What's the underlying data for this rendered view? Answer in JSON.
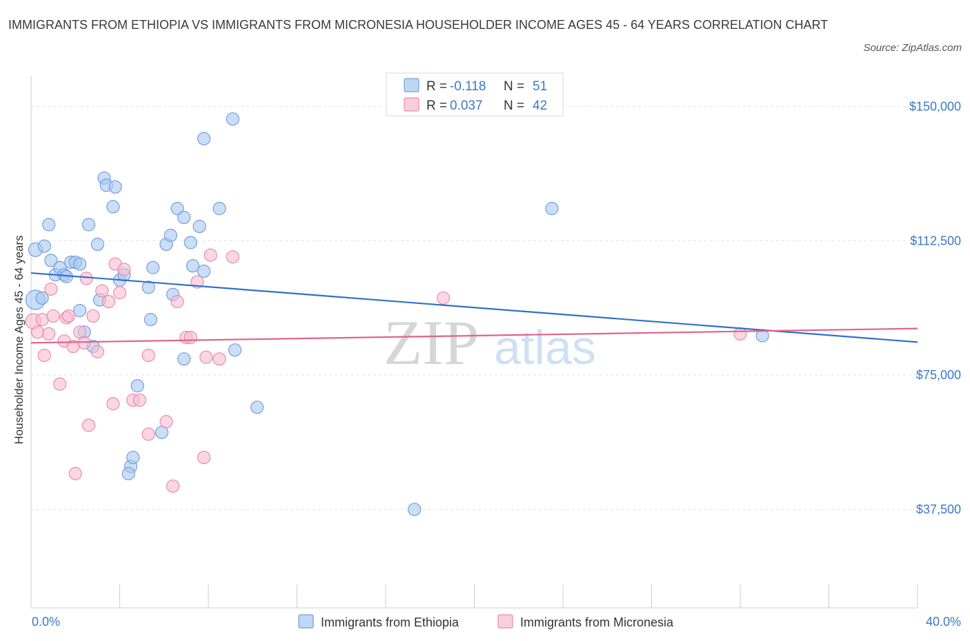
{
  "title": "IMMIGRANTS FROM ETHIOPIA VS IMMIGRANTS FROM MICRONESIA HOUSEHOLDER INCOME AGES 45 - 64 YEARS CORRELATION CHART",
  "source": "Source: ZipAtlas.com",
  "watermark": {
    "zip": "ZIP",
    "atlas": "atlas"
  },
  "colors": {
    "ethiopia_fill": "#a9c8f0",
    "ethiopia_stroke": "#6f9fe0",
    "ethiopia_line": "#2f6fd0",
    "micronesia_fill": "#f6bdd0",
    "micronesia_stroke": "#e98aac",
    "micronesia_line": "#e0628e",
    "axis_text": "#3b78c9"
  },
  "legend": {
    "rows": [
      {
        "r_label": "R = ",
        "r_value": "-0.118",
        "n_label": "N = ",
        "n_value": "51"
      },
      {
        "r_label": "R = ",
        "r_value": "0.037",
        "n_label": "N = ",
        "n_value": "42"
      }
    ]
  },
  "chart_data": {
    "type": "scatter",
    "title": "IMMIGRANTS FROM ETHIOPIA VS IMMIGRANTS FROM MICRONESIA HOUSEHOLDER INCOME AGES 45 - 64 YEARS CORRELATION CHART",
    "xlabel": "",
    "ylabel": "Householder Income Ages 45 - 64 years",
    "xlim": [
      0,
      40
    ],
    "ylim": [
      10000,
      157000
    ],
    "x_tick_labels": [
      "0.0%",
      "40.0%"
    ],
    "y_ticks": [
      37500,
      75000,
      112500,
      150000
    ],
    "y_tick_labels": [
      "$37,500",
      "$75,000",
      "$112,500",
      "$150,000"
    ],
    "grid": true,
    "legend_position": "top-center",
    "series": [
      {
        "name": "Immigrants from Ethiopia",
        "trend": {
          "x": [
            0,
            40
          ],
          "y": [
            103500,
            84200
          ]
        },
        "points": [
          [
            0.2,
            96000,
            14
          ],
          [
            0.2,
            110000,
            10
          ],
          [
            0.5,
            96500,
            9
          ],
          [
            0.6,
            111000,
            9
          ],
          [
            0.8,
            117000,
            9
          ],
          [
            0.9,
            107000,
            9
          ],
          [
            1.1,
            103000,
            9
          ],
          [
            1.3,
            105000,
            9
          ],
          [
            1.5,
            103000,
            9
          ],
          [
            1.6,
            102500,
            9
          ],
          [
            1.8,
            106500,
            9
          ],
          [
            2.0,
            106500,
            9
          ],
          [
            2.2,
            106000,
            9
          ],
          [
            2.2,
            93000,
            9
          ],
          [
            2.4,
            87000,
            9
          ],
          [
            2.6,
            117000,
            9
          ],
          [
            2.8,
            83000,
            9
          ],
          [
            3.0,
            111500,
            9
          ],
          [
            3.1,
            96000,
            9
          ],
          [
            3.3,
            130000,
            9
          ],
          [
            3.4,
            128000,
            9
          ],
          [
            3.8,
            127500,
            9
          ],
          [
            3.7,
            122000,
            9
          ],
          [
            4.0,
            101500,
            9
          ],
          [
            4.2,
            103000,
            9
          ],
          [
            4.8,
            72000,
            9
          ],
          [
            4.5,
            49500,
            9
          ],
          [
            4.4,
            47500,
            9
          ],
          [
            4.6,
            52000,
            9
          ],
          [
            5.3,
            99500,
            9
          ],
          [
            5.4,
            90500,
            9
          ],
          [
            5.5,
            105000,
            9
          ],
          [
            5.9,
            59000,
            9
          ],
          [
            6.1,
            111500,
            9
          ],
          [
            6.3,
            114000,
            9
          ],
          [
            6.4,
            97500,
            9
          ],
          [
            6.6,
            121500,
            9
          ],
          [
            6.9,
            79500,
            9
          ],
          [
            6.9,
            119000,
            9
          ],
          [
            7.2,
            112000,
            9
          ],
          [
            7.3,
            105500,
            9
          ],
          [
            7.6,
            116500,
            9
          ],
          [
            7.8,
            104000,
            9
          ],
          [
            7.8,
            141000,
            9
          ],
          [
            8.5,
            121500,
            9
          ],
          [
            9.1,
            146500,
            9
          ],
          [
            9.2,
            82000,
            9
          ],
          [
            10.2,
            66000,
            9
          ],
          [
            17.3,
            37500,
            9
          ],
          [
            23.5,
            121500,
            9
          ],
          [
            33.0,
            86000,
            9
          ]
        ]
      },
      {
        "name": "Immigrants from Micronesia",
        "trend": {
          "x": [
            0,
            40
          ],
          "y": [
            84000,
            88000
          ]
        },
        "points": [
          [
            0.1,
            90000,
            11
          ],
          [
            0.3,
            87000,
            9
          ],
          [
            0.5,
            90500,
            9
          ],
          [
            0.6,
            80500,
            9
          ],
          [
            0.8,
            86500,
            9
          ],
          [
            0.9,
            99000,
            9
          ],
          [
            1.0,
            91500,
            9
          ],
          [
            1.3,
            72500,
            9
          ],
          [
            1.5,
            84500,
            9
          ],
          [
            1.6,
            91000,
            9
          ],
          [
            1.7,
            91500,
            9
          ],
          [
            1.9,
            83000,
            9
          ],
          [
            2.0,
            47500,
            9
          ],
          [
            2.2,
            87000,
            9
          ],
          [
            2.4,
            84000,
            9
          ],
          [
            2.5,
            102000,
            9
          ],
          [
            2.6,
            61000,
            9
          ],
          [
            2.8,
            91500,
            9
          ],
          [
            3.0,
            81500,
            9
          ],
          [
            3.2,
            98500,
            9
          ],
          [
            3.5,
            95500,
            9
          ],
          [
            3.7,
            67000,
            9
          ],
          [
            3.8,
            106000,
            9
          ],
          [
            4.0,
            98000,
            9
          ],
          [
            4.2,
            104500,
            9
          ],
          [
            4.6,
            68000,
            9
          ],
          [
            4.9,
            68000,
            9
          ],
          [
            5.3,
            58500,
            9
          ],
          [
            5.3,
            80500,
            9
          ],
          [
            6.1,
            62000,
            9
          ],
          [
            6.4,
            44000,
            9
          ],
          [
            6.6,
            95500,
            9
          ],
          [
            7.0,
            85500,
            9
          ],
          [
            7.2,
            85500,
            9
          ],
          [
            7.5,
            101000,
            9
          ],
          [
            7.8,
            52000,
            9
          ],
          [
            7.9,
            80000,
            9
          ],
          [
            8.1,
            108500,
            9
          ],
          [
            8.5,
            79500,
            9
          ],
          [
            9.1,
            108000,
            9
          ],
          [
            18.6,
            96500,
            9
          ],
          [
            32.0,
            86500,
            9
          ]
        ]
      }
    ]
  }
}
